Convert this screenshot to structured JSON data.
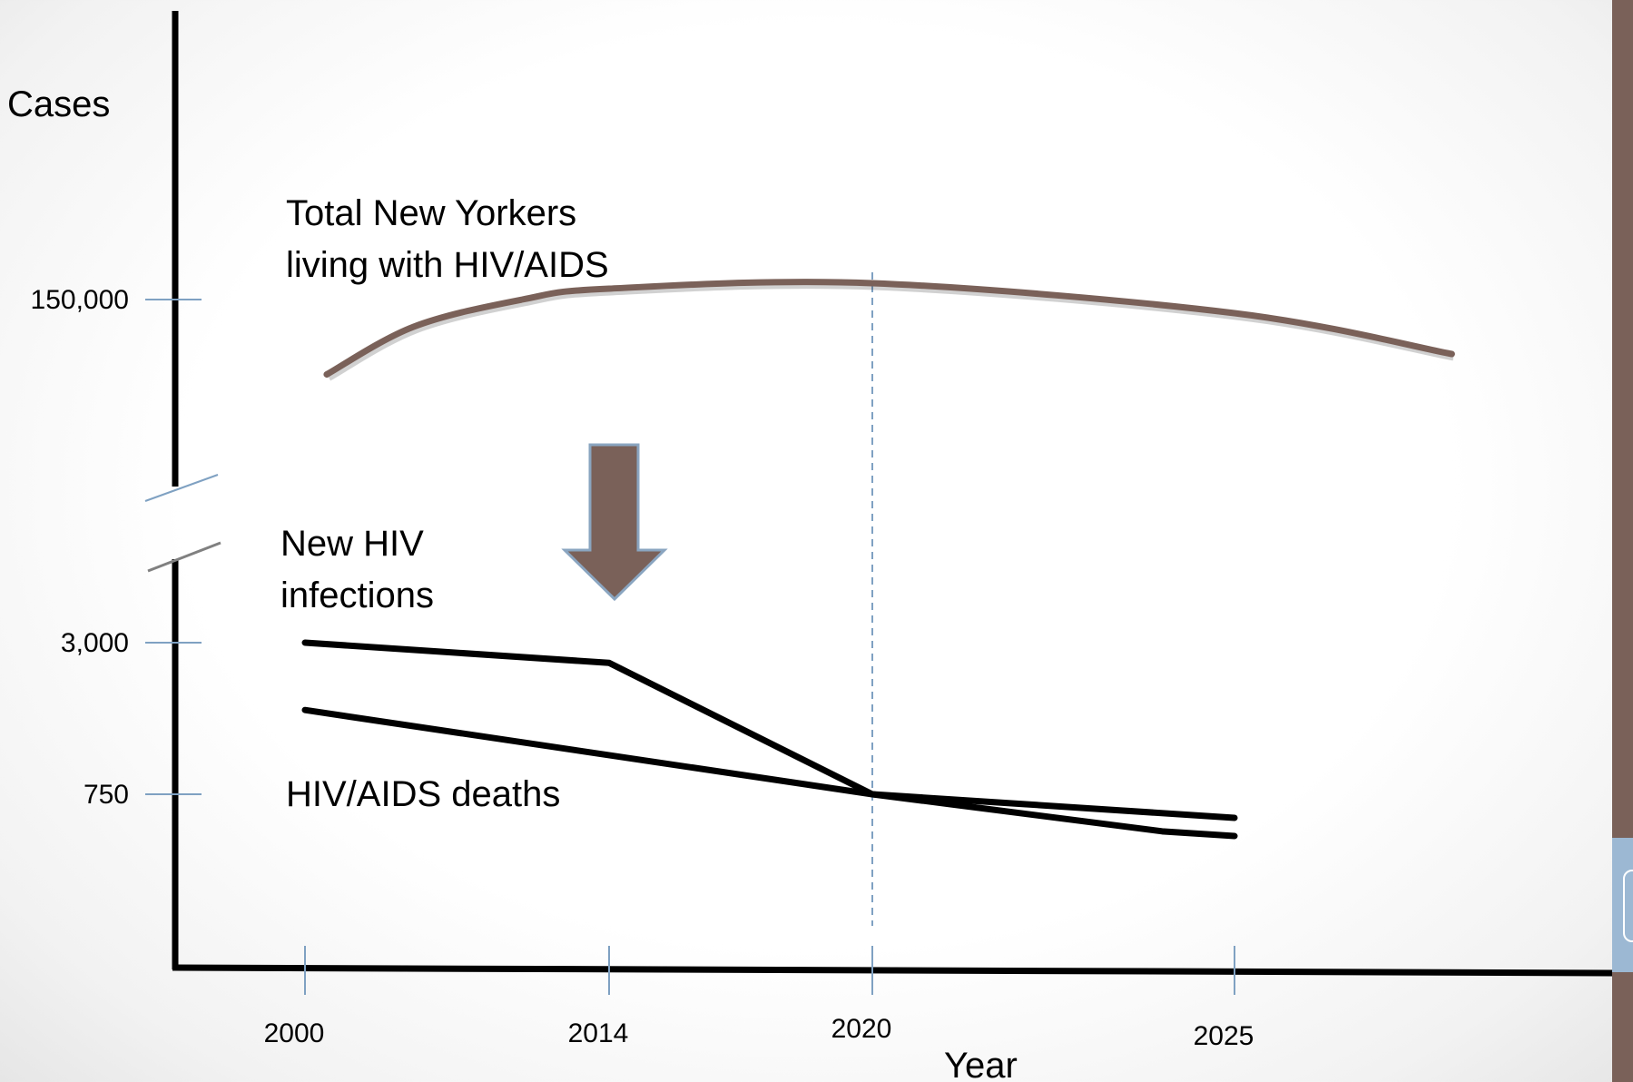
{
  "chart_data": {
    "type": "line",
    "ylabel": "Cases",
    "xlabel": "Year",
    "x_ticks": [
      "2000",
      "2014",
      "2020",
      "2025"
    ],
    "y_ticks": [
      "150,000",
      "3,000",
      "750"
    ],
    "y_axis_break": true,
    "reference_line_x": "2020",
    "series": [
      {
        "name": "Total New Yorkers living with HIV/AIDS",
        "color": "#7a6159",
        "points": [
          [
            2001,
            95000
          ],
          [
            2005,
            130000
          ],
          [
            2010,
            150000
          ],
          [
            2014,
            158000
          ],
          [
            2020,
            162000
          ],
          [
            2025,
            140000
          ],
          [
            2028,
            110000
          ]
        ]
      },
      {
        "name": "New HIV infections",
        "color": "#000000",
        "points": [
          [
            2000,
            3000
          ],
          [
            2014,
            2700
          ],
          [
            2020,
            750
          ],
          [
            2024,
            200
          ],
          [
            2025,
            130
          ]
        ]
      },
      {
        "name": "HIV/AIDS deaths",
        "color": "#000000",
        "points": [
          [
            2000,
            2000
          ],
          [
            2020,
            750
          ],
          [
            2025,
            400
          ]
        ]
      }
    ],
    "annotations": [
      "downward-arrow"
    ]
  },
  "labels": {
    "total_line1": "Total New Yorkers",
    "total_line2": "living with HIV/AIDS",
    "new_line1": "New HIV",
    "new_line2": "infections",
    "deaths": "HIV/AIDS deaths"
  },
  "colors": {
    "sidebar": "#7a6159",
    "accent": "#9cb8d3"
  }
}
